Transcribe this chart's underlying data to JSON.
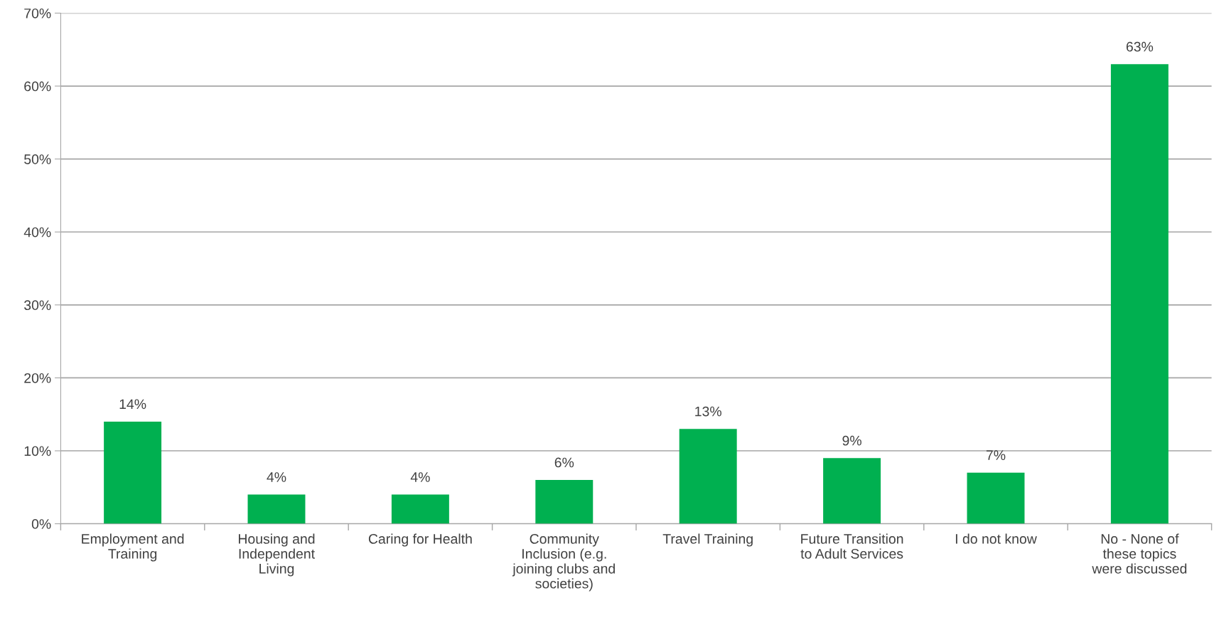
{
  "chart_data": {
    "type": "bar",
    "categories": [
      "Employment and\nTraining",
      "Housing and\nIndependent\nLiving",
      "Caring for Health",
      "Community\nInclusion (e.g.\njoining clubs and\nsocieties)",
      "Travel Training",
      "Future Transition\nto Adult Services",
      "I do not know",
      "No - None of\nthese topics\nwere discussed"
    ],
    "values": [
      14,
      4,
      4,
      6,
      13,
      9,
      7,
      63
    ],
    "value_labels": [
      "14%",
      "4%",
      "4%",
      "6%",
      "13%",
      "9%",
      "7%",
      "63%"
    ],
    "color": "#00b050",
    "ylim": [
      0,
      70
    ],
    "yticks": [
      {
        "value": 0,
        "label": "0%"
      },
      {
        "value": 10,
        "label": "10%"
      },
      {
        "value": 20,
        "label": "20%"
      },
      {
        "value": 30,
        "label": "30%"
      },
      {
        "value": 40,
        "label": "40%"
      },
      {
        "value": 50,
        "label": "50%"
      },
      {
        "value": 60,
        "label": "60%"
      },
      {
        "value": 70,
        "label": "70%"
      }
    ],
    "grid": "y",
    "legend": false
  }
}
